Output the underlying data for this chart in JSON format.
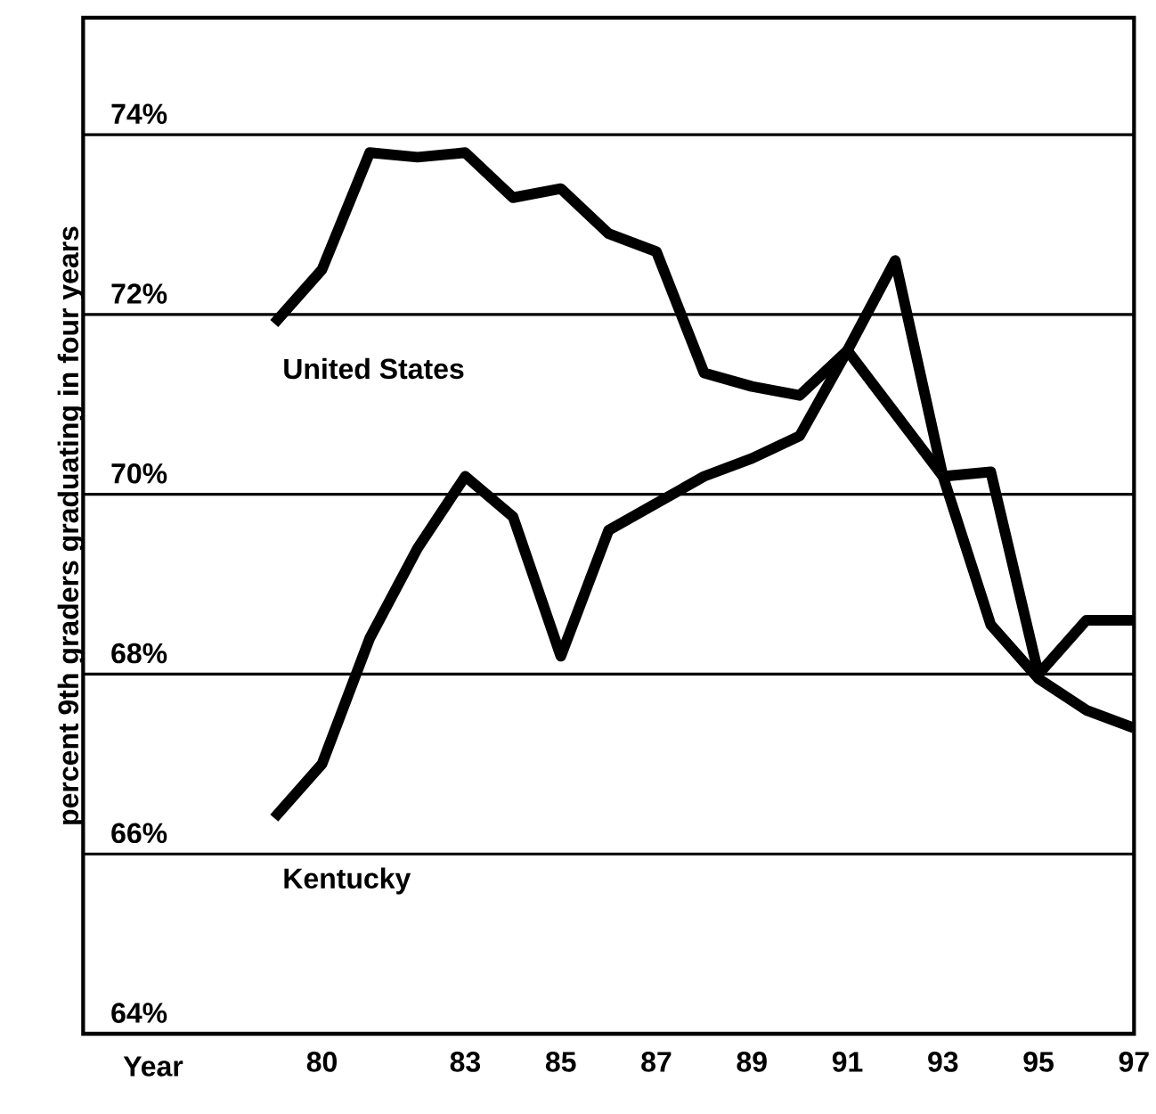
{
  "chart_data": {
    "type": "line",
    "xlabel": "Year",
    "ylabel": "percent 9th graders graduating in four years",
    "x": [
      79,
      80,
      81,
      82,
      83,
      84,
      85,
      86,
      87,
      88,
      89,
      90,
      91,
      92,
      93,
      94,
      95,
      96,
      97
    ],
    "series": [
      {
        "name": "United States",
        "color": "#000000",
        "values": [
          71.9,
          72.5,
          73.8,
          73.75,
          73.8,
          73.3,
          73.4,
          72.9,
          72.7,
          71.35,
          71.2,
          71.1,
          71.6,
          70.9,
          70.2,
          68.55,
          67.95,
          67.6,
          67.4
        ]
      },
      {
        "name": "Kentucky",
        "color": "#000000",
        "values": [
          66.4,
          67.0,
          68.4,
          69.4,
          70.2,
          69.75,
          68.2,
          69.6,
          69.9,
          70.2,
          70.4,
          70.65,
          71.6,
          72.6,
          70.2,
          70.25,
          68.0,
          68.6,
          68.6
        ]
      }
    ],
    "xlim": [
      75,
      97
    ],
    "ylim": [
      64,
      75.3
    ],
    "xticks": [
      80,
      83,
      85,
      87,
      89,
      91,
      93,
      95,
      97
    ],
    "yticks": [
      {
        "value": 64,
        "label": "64%"
      },
      {
        "value": 66,
        "label": "66%"
      },
      {
        "value": 68,
        "label": "68%"
      },
      {
        "value": 70,
        "label": "70%"
      },
      {
        "value": 72,
        "label": "72%"
      },
      {
        "value": 74,
        "label": "74%"
      }
    ],
    "grid": "y"
  }
}
